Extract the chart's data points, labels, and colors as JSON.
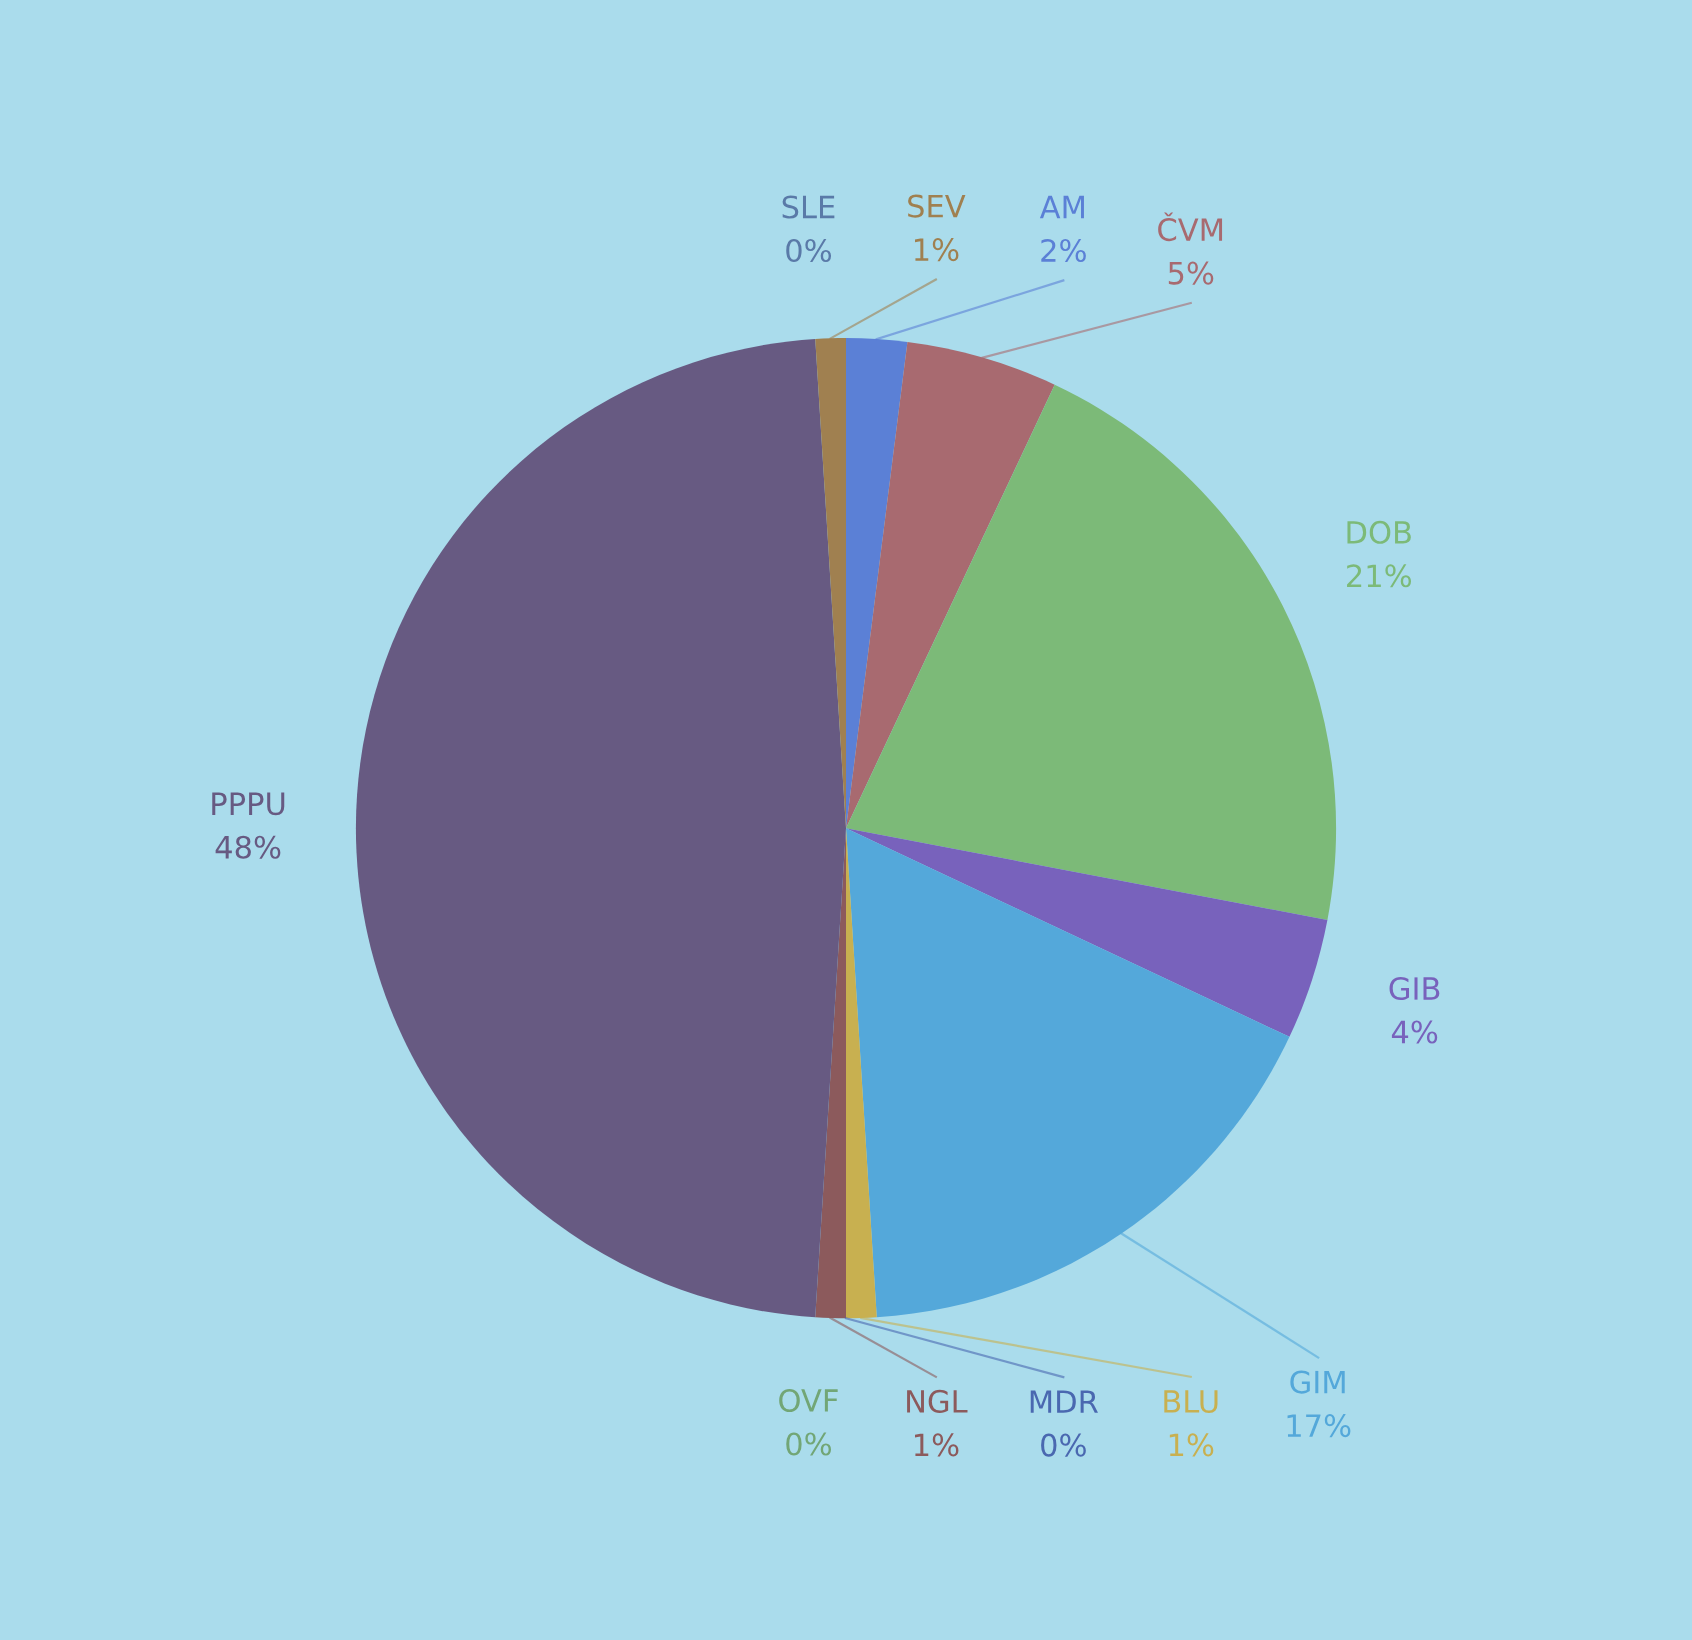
{
  "chart_data": {
    "type": "pie",
    "categories": [
      "AM",
      "ČVM",
      "DOB",
      "GIB",
      "GIM",
      "BLU",
      "MDR",
      "NGL",
      "OVF",
      "PPPU",
      "SLE",
      "SEV"
    ],
    "values": [
      2,
      5,
      21,
      4,
      17,
      1,
      0,
      1,
      0,
      48,
      0,
      1
    ],
    "value_labels": [
      "2%",
      "5%",
      "21%",
      "4%",
      "17%",
      "1%",
      "0%",
      "1%",
      "0%",
      "48%",
      "0%",
      "1%"
    ],
    "colors": [
      "#5b80d6",
      "#a86a70",
      "#7cba78",
      "#7862bc",
      "#54a8da",
      "#c8b050",
      "#4a68b0",
      "#8c5a5c",
      "#72a676",
      "#675a82",
      "#5a7aa8",
      "#a08050"
    ]
  }
}
